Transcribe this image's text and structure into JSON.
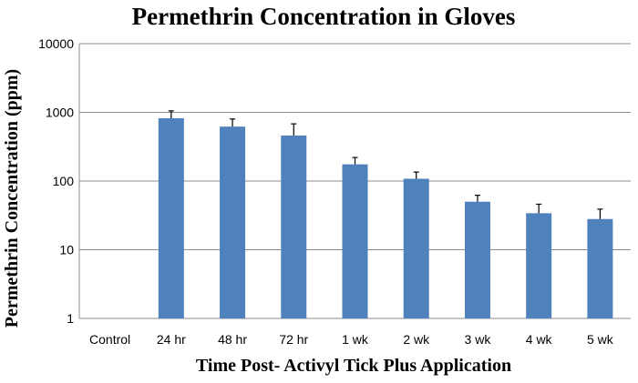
{
  "chart_data": {
    "type": "bar",
    "title": "Permethrin Concentration in Gloves",
    "xlabel": "Time Post- Activyl Tick Plus Application",
    "ylabel": "Permethrin Concentration (ppm)",
    "y_scale": "log",
    "ylim": [
      1,
      10000
    ],
    "y_ticks": [
      {
        "value": 1,
        "label": "1"
      },
      {
        "value": 10,
        "label": "10"
      },
      {
        "value": 100,
        "label": "100"
      },
      {
        "value": 1000,
        "label": "1000"
      },
      {
        "value": 10000,
        "label": "10000"
      }
    ],
    "grid": true,
    "legend": "none",
    "bar_color": "#4F81BD",
    "categories": [
      "Control",
      "24 hr",
      "48 hr",
      "72 hr",
      "1 wk",
      "2 wk",
      "3 wk",
      "4 wk",
      "5 wk"
    ],
    "values": [
      null,
      820,
      620,
      460,
      175,
      108,
      50,
      34,
      28
    ],
    "error_upper": [
      null,
      1050,
      800,
      680,
      220,
      135,
      62,
      46,
      39
    ]
  }
}
